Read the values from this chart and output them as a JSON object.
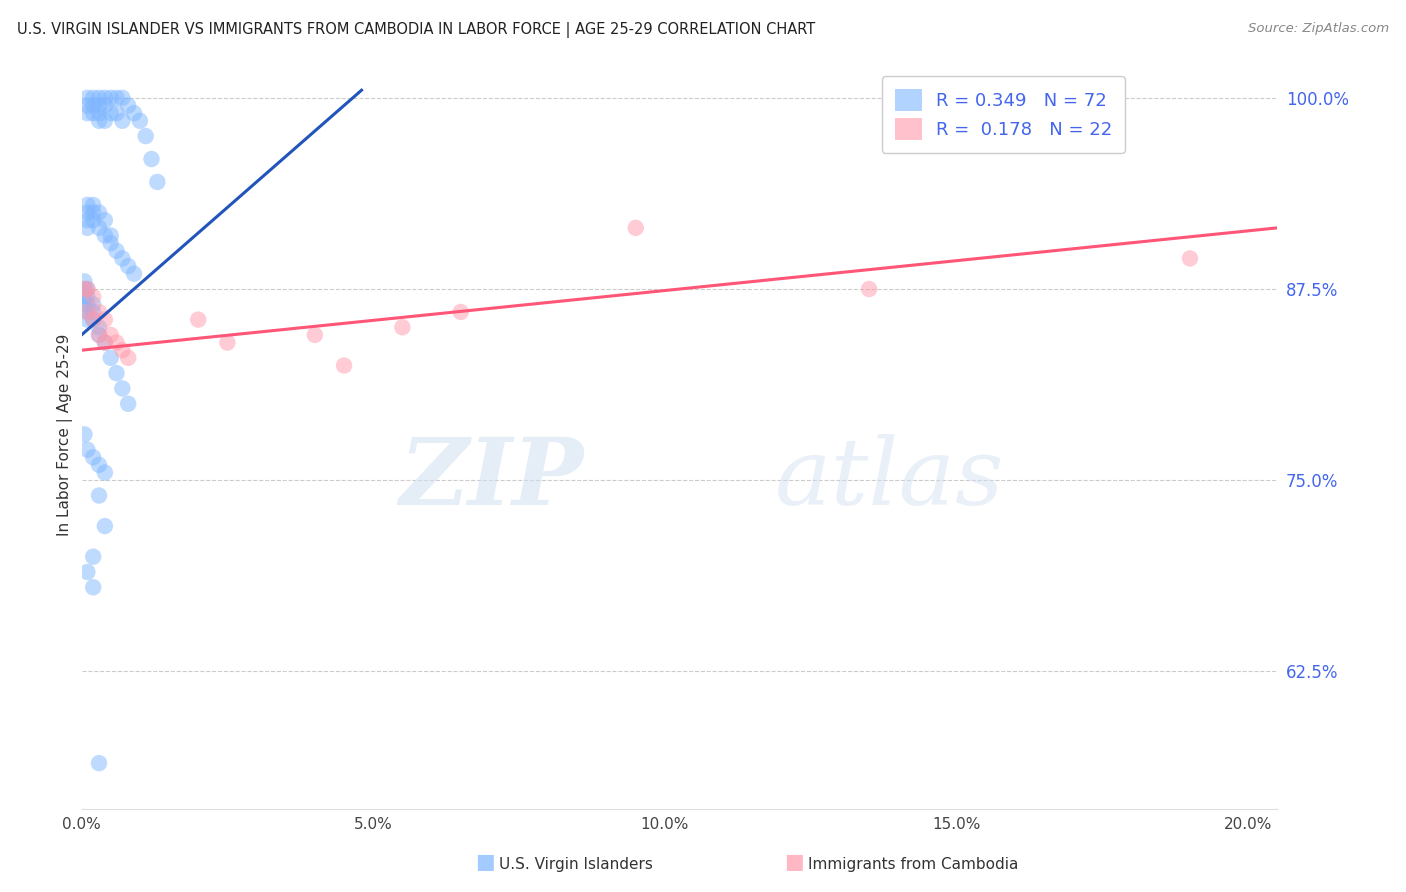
{
  "title": "U.S. VIRGIN ISLANDER VS IMMIGRANTS FROM CAMBODIA IN LABOR FORCE | AGE 25-29 CORRELATION CHART",
  "source": "Source: ZipAtlas.com",
  "ylabel": "In Labor Force | Age 25-29",
  "y_tick_labels": [
    "62.5%",
    "75.0%",
    "87.5%",
    "100.0%"
  ],
  "y_tick_values": [
    0.625,
    0.75,
    0.875,
    1.0
  ],
  "x_tick_labels": [
    "0.0%",
    "5.0%",
    "10.0%",
    "15.0%",
    "20.0%"
  ],
  "x_tick_values": [
    0.0,
    0.05,
    0.1,
    0.15,
    0.2
  ],
  "xlim": [
    0.0,
    0.205
  ],
  "ylim": [
    0.535,
    1.025
  ],
  "blue_color": "#7EB6FF",
  "pink_color": "#FF99AA",
  "blue_line_color": "#2255BB",
  "pink_line_color": "#FF5577",
  "legend_blue_R": "0.349",
  "legend_blue_N": "72",
  "legend_pink_R": "0.178",
  "legend_pink_N": "22",
  "legend_blue_label": "U.S. Virgin Islanders",
  "legend_pink_label": "Immigrants from Cambodia",
  "watermark_zip": "ZIP",
  "watermark_atlas": "atlas",
  "blue_x": [
    0.001,
    0.001,
    0.001,
    0.002,
    0.002,
    0.002,
    0.003,
    0.003,
    0.003,
    0.003,
    0.004,
    0.004,
    0.004,
    0.005,
    0.005,
    0.006,
    0.006,
    0.007,
    0.007,
    0.008,
    0.009,
    0.01,
    0.011,
    0.012,
    0.013,
    0.001,
    0.001,
    0.001,
    0.001,
    0.002,
    0.002,
    0.002,
    0.003,
    0.003,
    0.004,
    0.004,
    0.005,
    0.005,
    0.006,
    0.007,
    0.008,
    0.009,
    0.0005,
    0.0005,
    0.0005,
    0.0005,
    0.001,
    0.001,
    0.001,
    0.001,
    0.001,
    0.002,
    0.002,
    0.002,
    0.003,
    0.003,
    0.004,
    0.005,
    0.006,
    0.007,
    0.008,
    0.0005,
    0.001,
    0.002,
    0.003,
    0.004,
    0.003,
    0.004,
    0.002,
    0.001,
    0.002,
    0.003
  ],
  "blue_y": [
    1.0,
    0.995,
    0.99,
    1.0,
    0.995,
    0.99,
    1.0,
    0.995,
    0.99,
    0.985,
    1.0,
    0.995,
    0.985,
    1.0,
    0.99,
    1.0,
    0.99,
    1.0,
    0.985,
    0.995,
    0.99,
    0.985,
    0.975,
    0.96,
    0.945,
    0.93,
    0.925,
    0.92,
    0.915,
    0.93,
    0.925,
    0.92,
    0.925,
    0.915,
    0.92,
    0.91,
    0.91,
    0.905,
    0.9,
    0.895,
    0.89,
    0.885,
    0.88,
    0.875,
    0.87,
    0.865,
    0.875,
    0.87,
    0.865,
    0.86,
    0.855,
    0.865,
    0.86,
    0.855,
    0.85,
    0.845,
    0.84,
    0.83,
    0.82,
    0.81,
    0.8,
    0.78,
    0.77,
    0.765,
    0.76,
    0.755,
    0.74,
    0.72,
    0.7,
    0.69,
    0.68,
    0.565
  ],
  "pink_x": [
    0.0005,
    0.001,
    0.001,
    0.002,
    0.002,
    0.003,
    0.003,
    0.004,
    0.004,
    0.005,
    0.006,
    0.007,
    0.008,
    0.02,
    0.025,
    0.04,
    0.045,
    0.055,
    0.065,
    0.095,
    0.135,
    0.19
  ],
  "pink_y": [
    0.875,
    0.875,
    0.86,
    0.87,
    0.855,
    0.86,
    0.845,
    0.855,
    0.84,
    0.845,
    0.84,
    0.835,
    0.83,
    0.855,
    0.84,
    0.845,
    0.825,
    0.85,
    0.86,
    0.915,
    0.875,
    0.895
  ],
  "blue_line_x0": 0.0,
  "blue_line_x1": 0.048,
  "blue_line_y0": 0.845,
  "blue_line_y1": 1.005,
  "pink_line_x0": 0.0,
  "pink_line_x1": 0.205,
  "pink_line_y0": 0.835,
  "pink_line_y1": 0.915
}
